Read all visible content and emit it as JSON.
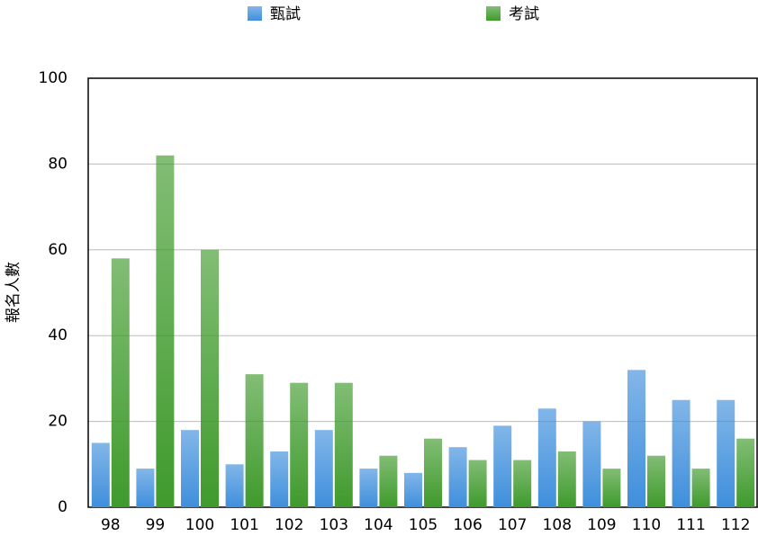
{
  "chart_data": {
    "type": "bar",
    "y_label": "報名人數",
    "categories": [
      "98",
      "99",
      "100",
      "101",
      "102",
      "103",
      "104",
      "105",
      "106",
      "107",
      "108",
      "109",
      "110",
      "111",
      "112"
    ],
    "series": [
      {
        "name": "甄試",
        "color": "#3f8fdc",
        "values": [
          15,
          9,
          18,
          10,
          13,
          18,
          9,
          8,
          14,
          19,
          23,
          20,
          32,
          25,
          25
        ]
      },
      {
        "name": "考試",
        "color": "#3f9a2c",
        "values": [
          58,
          82,
          60,
          31,
          29,
          29,
          12,
          16,
          11,
          11,
          13,
          9,
          12,
          9,
          16
        ]
      }
    ],
    "ylim": [
      0,
      100
    ],
    "yticks": [
      0,
      20,
      40,
      60,
      80,
      100
    ],
    "grid": true
  }
}
